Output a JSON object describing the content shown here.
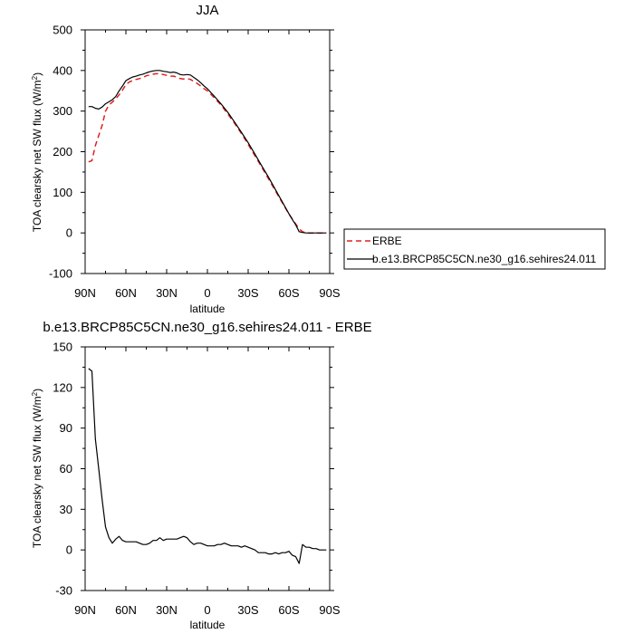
{
  "chart_data": [
    {
      "type": "line",
      "title": "JJA",
      "xlabel": "latitude",
      "ylabel": "TOA clearsky net SW flux (W/m",
      "ylabel_superscript": "2",
      "ylabel_suffix": ")",
      "xlim": [
        90,
        -90
      ],
      "ylim": [
        -100,
        500
      ],
      "xticks": [
        90,
        60,
        30,
        0,
        -30,
        -60,
        -90
      ],
      "xticklabels": [
        "90N",
        "60N",
        "30N",
        "0",
        "30S",
        "60S",
        "90S"
      ],
      "yticks": [
        -100,
        0,
        100,
        200,
        300,
        400,
        500
      ],
      "yticklabels": [
        "-100",
        "0",
        "100",
        "200",
        "300",
        "400",
        "500"
      ],
      "legend": {
        "placement": "outside-right",
        "entries": [
          "ERBE",
          "b.e13.BRCP85C5CN.ne30_g16.sehires24.011"
        ]
      },
      "series": [
        {
          "name": "ERBE",
          "color": "#e02020",
          "dash": true,
          "x": [
            87.5,
            85,
            82.5,
            80,
            77.5,
            75,
            72.5,
            70,
            67.5,
            65,
            62.5,
            60,
            57.5,
            55,
            52.5,
            50,
            47.5,
            45,
            42.5,
            40,
            37.5,
            35,
            32.5,
            30,
            27.5,
            25,
            22.5,
            20,
            17.5,
            15,
            12.5,
            10,
            7.5,
            5,
            2.5,
            0,
            -5,
            -10,
            -15,
            -20,
            -25,
            -30,
            -35,
            -40,
            -45,
            -50,
            -55,
            -60,
            -62.5,
            -65,
            -67.5,
            -70,
            -72.5,
            -75,
            -80,
            -85,
            -87.5
          ],
          "y": [
            175,
            178,
            215,
            240,
            265,
            300,
            315,
            322,
            330,
            340,
            352,
            365,
            372,
            375,
            378,
            380,
            383,
            387,
            389,
            391,
            392,
            392,
            390,
            388,
            386,
            386,
            384,
            380,
            379,
            380,
            378,
            373,
            368,
            362,
            355,
            350,
            333,
            315,
            293,
            270,
            245,
            218,
            190,
            162,
            133,
            104,
            75,
            47,
            34,
            22,
            10,
            3,
            0,
            0,
            0,
            0,
            0
          ]
        },
        {
          "name": "b.e13.BRCP85C5CN.ne30_g16.sehires24.011",
          "color": "#000000",
          "dash": false,
          "x": [
            87.5,
            85,
            82.5,
            80,
            77.5,
            75,
            72.5,
            70,
            67.5,
            65,
            62.5,
            60,
            57.5,
            55,
            52.5,
            50,
            47.5,
            45,
            42.5,
            40,
            37.5,
            35,
            32.5,
            30,
            27.5,
            25,
            22.5,
            20,
            17.5,
            15,
            12.5,
            10,
            7.5,
            5,
            2.5,
            0,
            -5,
            -10,
            -15,
            -20,
            -25,
            -30,
            -35,
            -40,
            -45,
            -50,
            -55,
            -60,
            -62.5,
            -65,
            -67.5,
            -70,
            -72.5,
            -75,
            -80,
            -85,
            -87.5
          ],
          "y": [
            311,
            311,
            307,
            305,
            310,
            318,
            323,
            328,
            336,
            350,
            362,
            375,
            380,
            384,
            386,
            389,
            391,
            394,
            397,
            399,
            400,
            400,
            398,
            397,
            395,
            396,
            394,
            390,
            389,
            390,
            389,
            383,
            377,
            370,
            362,
            355,
            337,
            318,
            297,
            273,
            248,
            222,
            194,
            165,
            137,
            107,
            77,
            47,
            33,
            20,
            3,
            1,
            0,
            0,
            0,
            0,
            0
          ]
        }
      ]
    },
    {
      "type": "line",
      "title": "b.e13.BRCP85C5CN.ne30_g16.sehires24.011 - ERBE",
      "xlabel": "latitude",
      "ylabel": "TOA clearsky net SW flux (W/m",
      "ylabel_superscript": "2",
      "ylabel_suffix": ")",
      "xlim": [
        90,
        -90
      ],
      "ylim": [
        -30,
        150
      ],
      "xticks": [
        90,
        60,
        30,
        0,
        -30,
        -60,
        -90
      ],
      "xticklabels": [
        "90N",
        "60N",
        "30N",
        "0",
        "30S",
        "60S",
        "90S"
      ],
      "yticks": [
        -30,
        0,
        30,
        60,
        90,
        120,
        150
      ],
      "yticklabels": [
        "-30",
        "0",
        "30",
        "60",
        "90",
        "120",
        "150"
      ],
      "series": [
        {
          "color": "#000000",
          "dash": false,
          "x": [
            87.5,
            85,
            82.5,
            80,
            77.5,
            75,
            72.5,
            70,
            67.5,
            65,
            62.5,
            60,
            57.5,
            55,
            52.5,
            50,
            47.5,
            45,
            42.5,
            40,
            37.5,
            35,
            32.5,
            30,
            27.5,
            25,
            22.5,
            20,
            17.5,
            15,
            12.5,
            10,
            7.5,
            5,
            2.5,
            0,
            -2.5,
            -5,
            -7.5,
            -10,
            -12.5,
            -15,
            -17.5,
            -20,
            -22.5,
            -25,
            -27.5,
            -30,
            -32.5,
            -35,
            -37.5,
            -40,
            -42.5,
            -45,
            -47.5,
            -50,
            -52.5,
            -55,
            -57.5,
            -60,
            -62.5,
            -65,
            -67.5,
            -70,
            -72.5,
            -75,
            -77.5,
            -80,
            -82.5,
            -85,
            -87.5
          ],
          "y": [
            134,
            132,
            82,
            60,
            37,
            17,
            9,
            5,
            8,
            10,
            7,
            6,
            6,
            6,
            6,
            5,
            4,
            4,
            5,
            7,
            7,
            9,
            7,
            8,
            8,
            8,
            8,
            9,
            10,
            9,
            6,
            4,
            5,
            5,
            4,
            3,
            3,
            3,
            4,
            4,
            5,
            4,
            3,
            3,
            3,
            2,
            3,
            2,
            1,
            0,
            -2,
            -2,
            -2,
            -3,
            -3,
            -2,
            -3,
            -2,
            -2,
            -1,
            -4,
            -5,
            -10,
            4,
            2,
            2,
            1,
            1,
            0,
            0,
            0
          ]
        }
      ]
    }
  ]
}
